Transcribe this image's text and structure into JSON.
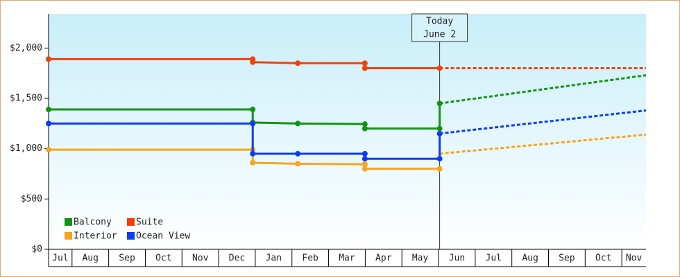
{
  "chart_data": {
    "type": "line",
    "today": {
      "x": 11.03,
      "label": "Today",
      "date": "June 2"
    },
    "xlim": [
      0.36,
      16.66
    ],
    "xticks": [
      {
        "value": 0.5,
        "label": "Jul"
      },
      {
        "value": 1.5,
        "label": "Aug"
      },
      {
        "value": 2.5,
        "label": "Sep"
      },
      {
        "value": 3.5,
        "label": "Oct"
      },
      {
        "value": 4.5,
        "label": "Nov"
      },
      {
        "value": 5.5,
        "label": "Dec"
      },
      {
        "value": 6.5,
        "label": "Jan"
      },
      {
        "value": 7.5,
        "label": "Feb"
      },
      {
        "value": 8.5,
        "label": "Mar"
      },
      {
        "value": 9.5,
        "label": "Apr"
      },
      {
        "value": 10.5,
        "label": "May"
      },
      {
        "value": 11.5,
        "label": "Jun"
      },
      {
        "value": 12.5,
        "label": "Jul"
      },
      {
        "value": 13.5,
        "label": "Aug"
      },
      {
        "value": 14.5,
        "label": "Sep"
      },
      {
        "value": 15.5,
        "label": "Oct"
      },
      {
        "value": 16.5,
        "label": "Nov"
      }
    ],
    "ylim": [
      0,
      2340
    ],
    "yticks": [
      {
        "value": 0,
        "label": "$0"
      },
      {
        "value": 500,
        "label": "$500"
      },
      {
        "value": 1000,
        "label": "$1,000"
      },
      {
        "value": 1500,
        "label": "$1,500"
      },
      {
        "value": 2000,
        "label": "$2,000"
      }
    ],
    "series": [
      {
        "name": "Balcony",
        "color": "#129412",
        "x": [
          0.36,
          5.93,
          5.93,
          7.16,
          8.99,
          8.99,
          11.03,
          11.03
        ],
        "values": [
          1390,
          1390,
          1260,
          1250,
          1245,
          1200,
          1200,
          1450
        ],
        "forecast_x": [
          11.03,
          16.66
        ],
        "forecast": [
          1450,
          1730
        ]
      },
      {
        "name": "Suite",
        "color": "#f0400c",
        "x": [
          0.36,
          5.93,
          5.93,
          7.16,
          8.99,
          8.99,
          11.03
        ],
        "values": [
          1890,
          1890,
          1860,
          1850,
          1850,
          1800,
          1800
        ],
        "forecast_x": [
          11.03,
          16.66
        ],
        "forecast": [
          1800,
          1800
        ]
      },
      {
        "name": "Interior",
        "color": "#f7a51c",
        "x": [
          0.36,
          5.93,
          5.93,
          7.16,
          8.99,
          8.99,
          11.03
        ],
        "values": [
          990,
          990,
          860,
          850,
          845,
          800,
          800
        ],
        "forecast_x": [
          11.03,
          16.66
        ],
        "forecast": [
          950,
          1140
        ]
      },
      {
        "name": "Ocean View",
        "color": "#0c3cf2",
        "x": [
          0.36,
          5.93,
          5.93,
          7.16,
          8.99,
          8.99,
          11.03,
          11.03
        ],
        "values": [
          1250,
          1250,
          950,
          950,
          950,
          900,
          900,
          1150
        ],
        "forecast_x": [
          11.03,
          16.66
        ],
        "forecast": [
          1150,
          1380
        ]
      }
    ]
  }
}
